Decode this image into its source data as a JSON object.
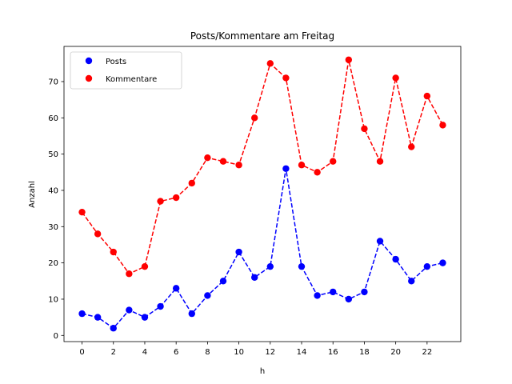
{
  "chart_data": {
    "type": "line",
    "title": "Posts/Kommentare am Freitag",
    "xlabel": "h",
    "ylabel": "Anzahl",
    "x": [
      0,
      1,
      2,
      3,
      4,
      5,
      6,
      7,
      8,
      9,
      10,
      11,
      12,
      13,
      14,
      15,
      16,
      17,
      18,
      19,
      20,
      21,
      22,
      23
    ],
    "xlim": [
      -1.15,
      24.15
    ],
    "ylim": [
      -1.7,
      79.7
    ],
    "xticks": [
      "0",
      "2",
      "4",
      "6",
      "8",
      "10",
      "12",
      "14",
      "16",
      "18",
      "20",
      "22"
    ],
    "yticks": [
      "0",
      "10",
      "20",
      "30",
      "40",
      "50",
      "60",
      "70"
    ],
    "legend_position": "upper left",
    "grid": false,
    "series": [
      {
        "name": "Posts",
        "color": "#0000ff",
        "line_style": "dashed",
        "marker": "circle",
        "values": [
          6,
          5,
          2,
          7,
          5,
          8,
          13,
          6,
          11,
          15,
          23,
          16,
          19,
          46,
          19,
          11,
          12,
          10,
          12,
          26,
          21,
          15,
          19,
          20
        ]
      },
      {
        "name": "Kommentare",
        "color": "#ff0000",
        "line_style": "dashed",
        "marker": "circle",
        "values": [
          34,
          28,
          23,
          17,
          19,
          37,
          38,
          42,
          49,
          48,
          47,
          60,
          75,
          71,
          47,
          45,
          48,
          76,
          57,
          48,
          71,
          52,
          66,
          58
        ]
      }
    ]
  }
}
